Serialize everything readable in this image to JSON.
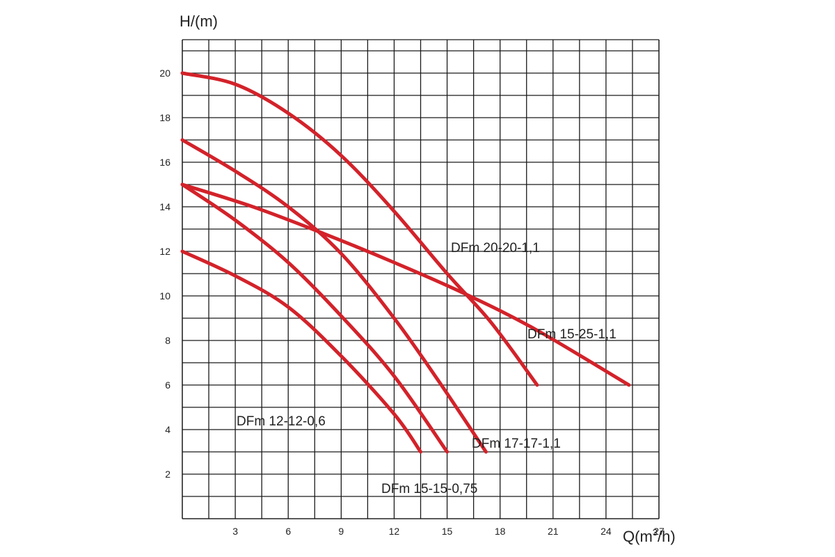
{
  "chart_data": {
    "type": "line",
    "title": "",
    "xlabel": "Q(m",
    "xlabel_sup": "3",
    "xlabel_suffix": "/h)",
    "ylabel": "H/(m)",
    "xlim": [
      0,
      27
    ],
    "ylim": [
      0,
      21.5
    ],
    "grid": true,
    "x_ticks": [
      3,
      6,
      9,
      12,
      15,
      18,
      21,
      24,
      27
    ],
    "y_ticks": [
      2,
      4,
      6,
      8,
      10,
      12,
      14,
      16,
      18,
      20
    ],
    "line_color": "#d3222a",
    "series": [
      {
        "name": "DFm  20-20-1,1",
        "x": [
          0,
          3,
          6,
          9,
          12,
          15,
          17.5,
          20.1
        ],
        "y": [
          20,
          19.5,
          18.2,
          16.3,
          13.8,
          11,
          8.8,
          6
        ]
      },
      {
        "name": "DFm  15-25-1,1",
        "x": [
          0,
          4,
          8,
          12,
          16,
          20,
          25.3
        ],
        "y": [
          15,
          14,
          12.8,
          11.5,
          10.1,
          8.5,
          6
        ]
      },
      {
        "name": "DFm  17-17-1,1",
        "x": [
          0,
          3,
          6,
          9,
          12,
          14.5,
          17.2
        ],
        "y": [
          17,
          15.6,
          14,
          11.9,
          9,
          6.2,
          3
        ]
      },
      {
        "name": "DFm  15-15-0,75",
        "x": [
          0,
          3,
          6,
          9,
          12,
          15
        ],
        "y": [
          15,
          13.4,
          11.5,
          9.1,
          6.4,
          3
        ]
      },
      {
        "name": "DFm  12-12-0,6",
        "x": [
          0,
          3,
          6,
          9,
          12,
          13.5
        ],
        "y": [
          12,
          10.9,
          9.5,
          7.3,
          4.7,
          3
        ]
      }
    ]
  }
}
